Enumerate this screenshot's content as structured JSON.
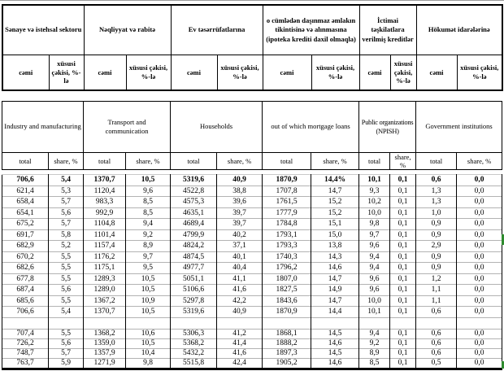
{
  "colors": {
    "background": "#ffffff",
    "border": "#000000",
    "gridline": "#b3b3b3",
    "selection_mark": "#2e8b2e"
  },
  "header_az": {
    "groups": [
      "Sənaye və istehsal sektoru",
      "Nəqliyyat və rabitə",
      "Ev təsərrüfatlarına",
      "o cümlədən daşınmaz əmlakın tikintisinə və alınmasına (ipoteka krediti daxil olmaqla)",
      "İctimai təşkilatlara verilmiş kreditlər",
      "Hökumət idarələrinə"
    ],
    "total_label": "cəmi",
    "share_label": "xüsusi çəkisi, %-lə"
  },
  "header_en": {
    "groups": [
      "Industry and manufacturing",
      "Transport and communication",
      "Households",
      "out of which mortgage loans",
      "Public organizations (NPISH)",
      "Government institutions"
    ],
    "total_label": "total",
    "share_label": "share, %"
  },
  "table": {
    "column_count": 12,
    "rows": [
      {
        "bold": true,
        "cells": [
          "706,6",
          "5,4",
          "1370,7",
          "10,5",
          "5319,6",
          "40,9",
          "1870,9",
          "14,4%",
          "10,1",
          "0,1",
          "0,6",
          "0,0"
        ]
      },
      {
        "cells": [
          "621,4",
          "5,3",
          "1120,4",
          "9,6",
          "4522,8",
          "38,8",
          "1707,8",
          "14,7",
          "9,3",
          "0,1",
          "1,3",
          "0,0"
        ]
      },
      {
        "cells": [
          "658,4",
          "5,7",
          "983,3",
          "8,5",
          "4575,3",
          "39,6",
          "1761,5",
          "15,2",
          "10,2",
          "0,1",
          "1,3",
          "0,0"
        ]
      },
      {
        "cells": [
          "654,1",
          "5,6",
          "992,9",
          "8,5",
          "4635,1",
          "39,7",
          "1777,9",
          "15,2",
          "10,0",
          "0,1",
          "1,0",
          "0,0"
        ]
      },
      {
        "cells": [
          "675,2",
          "5,7",
          "1104,8",
          "9,4",
          "4689,4",
          "39,7",
          "1784,8",
          "15,1",
          "9,8",
          "0,1",
          "0,9",
          "0,0"
        ]
      },
      {
        "cells": [
          "691,7",
          "5,8",
          "1101,4",
          "9,2",
          "4799,9",
          "40,2",
          "1793,1",
          "15,0",
          "9,7",
          "0,1",
          "0,9",
          "0,0"
        ]
      },
      {
        "cells": [
          "682,9",
          "5,2",
          "1157,4",
          "8,9",
          "4824,2",
          "37,1",
          "1793,3",
          "13,8",
          "9,6",
          "0,1",
          "2,9",
          "0,0"
        ]
      },
      {
        "cells": [
          "670,2",
          "5,5",
          "1176,2",
          "9,7",
          "4874,5",
          "40,1",
          "1740,3",
          "14,3",
          "9,4",
          "0,1",
          "0,9",
          "0,0"
        ]
      },
      {
        "cells": [
          "682,6",
          "5,5",
          "1175,1",
          "9,5",
          "4977,7",
          "40,4",
          "1796,2",
          "14,6",
          "9,4",
          "0,1",
          "0,9",
          "0,0"
        ]
      },
      {
        "cells": [
          "677,8",
          "5,5",
          "1289,3",
          "10,5",
          "5051,1",
          "41,1",
          "1807,0",
          "14,7",
          "9,6",
          "0,1",
          "1,2",
          "0,0"
        ]
      },
      {
        "cells": [
          "687,4",
          "5,6",
          "1289,0",
          "10,5",
          "5106,6",
          "41,6",
          "1827,5",
          "14,9",
          "9,6",
          "0,1",
          "1,1",
          "0,0"
        ]
      },
      {
        "cells": [
          "685,6",
          "5,5",
          "1367,2",
          "10,9",
          "5297,8",
          "42,2",
          "1843,6",
          "14,7",
          "10,0",
          "0,1",
          "1,1",
          "0,0"
        ]
      },
      {
        "cells": [
          "706,6",
          "5,4",
          "1370,7",
          "10,5",
          "5319,6",
          "40,9",
          "1870,9",
          "14,4",
          "10,1",
          "0,1",
          "0,6",
          "0,0"
        ]
      },
      {
        "blank": true
      },
      {
        "cells": [
          "707,4",
          "5,5",
          "1368,2",
          "10,6",
          "5306,3",
          "41,2",
          "1868,1",
          "14,5",
          "9,4",
          "0,1",
          "0,6",
          "0,0"
        ]
      },
      {
        "cells": [
          "726,2",
          "5,6",
          "1359,0",
          "10,5",
          "5368,2",
          "41,4",
          "1888,2",
          "14,6",
          "9,2",
          "0,1",
          "0,6",
          "0,0"
        ]
      },
      {
        "cells": [
          "748,7",
          "5,7",
          "1357,9",
          "10,4",
          "5432,2",
          "41,6",
          "1897,3",
          "14,5",
          "8,9",
          "0,1",
          "0,6",
          "0,0"
        ]
      },
      {
        "cells": [
          "763,7",
          "5,9",
          "1271,9",
          "9,8",
          "5515,8",
          "42,4",
          "1905,2",
          "14,6",
          "8,5",
          "0,1",
          "0,5",
          "0,0"
        ]
      }
    ]
  }
}
